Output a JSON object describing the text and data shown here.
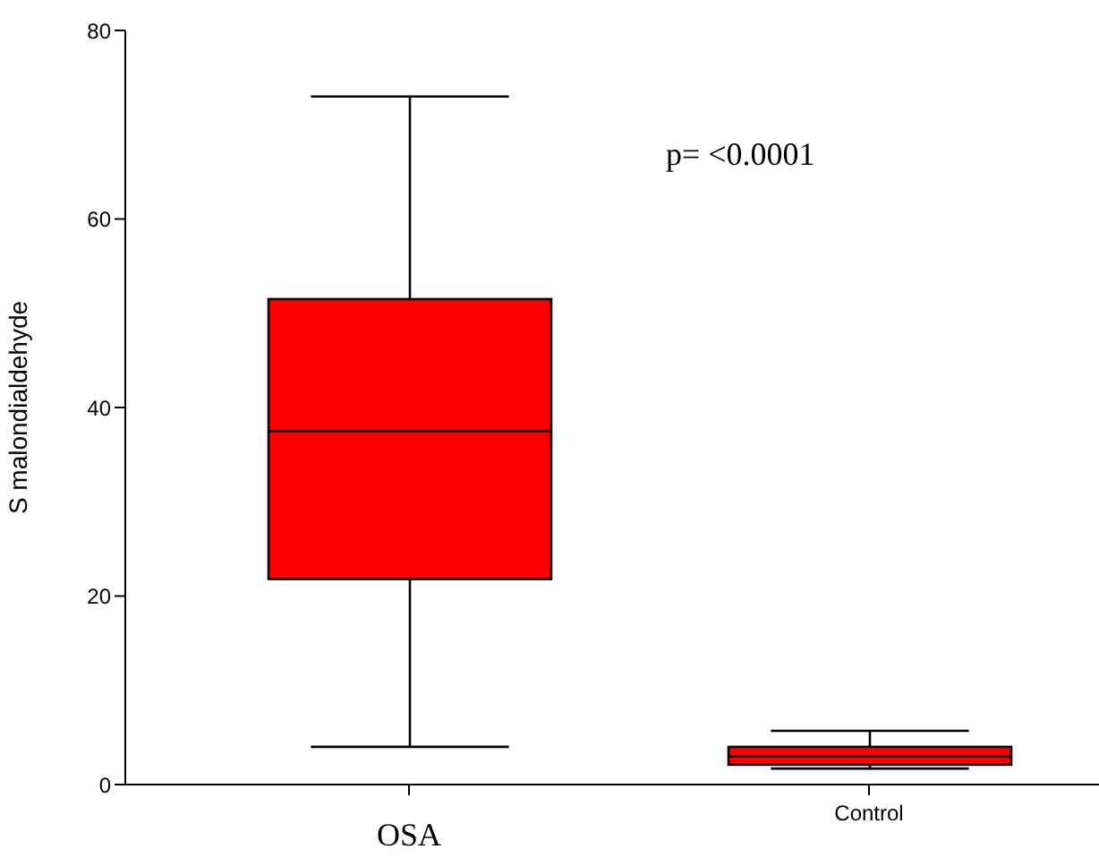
{
  "chart_data": {
    "type": "box",
    "ylabel": "S malondialdehyde",
    "categories": [
      "OSA",
      "Control"
    ],
    "color": "#ff0000",
    "boxes": [
      {
        "low": 4,
        "q1": 21.8,
        "median": 37.5,
        "q3": 51.5,
        "high": 73
      },
      {
        "low": 1.7,
        "q1": 2.1,
        "median": 3,
        "q3": 4,
        "high": 5.7
      }
    ],
    "ylim": [
      0,
      80
    ],
    "yticks": [
      0,
      20,
      40,
      60,
      80
    ],
    "grid": false,
    "legend": false,
    "annotations": [
      "p= <0.0001"
    ]
  }
}
